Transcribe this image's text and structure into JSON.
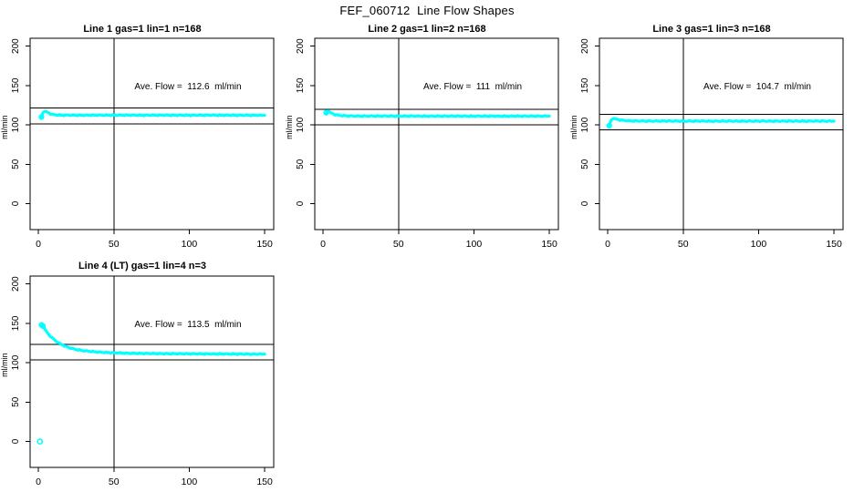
{
  "title": "FEF_060712  Line Flow Shapes",
  "colors": {
    "data": "#00FFFF",
    "axis": "#000000",
    "background": "#FFFFFF"
  },
  "axes": {
    "x_ticks": [
      0,
      50,
      100,
      150
    ],
    "y_ticks": [
      0,
      50,
      100,
      150,
      200
    ],
    "y_axis_label": "ml/min",
    "xlim": [
      0,
      150
    ],
    "ylim": [
      0,
      200
    ],
    "vline_x": 50
  },
  "chart_data": [
    {
      "type": "scatter",
      "title": "Line 1 gas=1 lin=1 n=168",
      "annotation": "Ave. Flow =  112.6  ml/min",
      "ave_flow": 112.6,
      "units": "ml/min",
      "n": 168,
      "hlines": [
        101,
        121.5
      ],
      "vline_x": 50,
      "points": [
        [
          2,
          110
        ],
        [
          3,
          115.5
        ],
        [
          4,
          117
        ],
        [
          5,
          117
        ],
        [
          6,
          116
        ],
        [
          7,
          115
        ],
        [
          8,
          114
        ],
        [
          10,
          113
        ],
        [
          12,
          112.6
        ],
        [
          15,
          112.3
        ],
        [
          20,
          112.4
        ],
        [
          30,
          112.2
        ],
        [
          40,
          112.4
        ],
        [
          50,
          112.3
        ],
        [
          60,
          112.4
        ],
        [
          70,
          112.2
        ],
        [
          80,
          112.4
        ],
        [
          90,
          112.3
        ],
        [
          100,
          112.2
        ],
        [
          110,
          112.4
        ],
        [
          120,
          112.3
        ],
        [
          130,
          112.2
        ],
        [
          140,
          112.3
        ],
        [
          150,
          112.1
        ]
      ],
      "start_circles": [
        [
          2,
          110
        ]
      ],
      "outliers": []
    },
    {
      "type": "scatter",
      "title": "Line 2 gas=1 lin=2 n=168",
      "annotation": "Ave. Flow =  111  ml/min",
      "ave_flow": 111,
      "units": "ml/min",
      "n": 168,
      "hlines": [
        100,
        119.5
      ],
      "vline_x": 50,
      "points": [
        [
          2,
          115
        ],
        [
          3,
          117.5
        ],
        [
          4,
          117
        ],
        [
          5,
          115.5
        ],
        [
          6,
          114.5
        ],
        [
          8,
          113
        ],
        [
          10,
          112.3
        ],
        [
          12,
          111.8
        ],
        [
          15,
          111.5
        ],
        [
          20,
          111.3
        ],
        [
          30,
          111.2
        ],
        [
          40,
          111.3
        ],
        [
          50,
          111.2
        ],
        [
          60,
          111.3
        ],
        [
          70,
          111.1
        ],
        [
          80,
          111.2
        ],
        [
          90,
          111.2
        ],
        [
          100,
          111.1
        ],
        [
          110,
          111.2
        ],
        [
          120,
          111.1
        ],
        [
          130,
          111.2
        ],
        [
          140,
          111.2
        ],
        [
          150,
          111.2
        ]
      ],
      "start_circles": [
        [
          2,
          115.5
        ]
      ],
      "outliers": []
    },
    {
      "type": "scatter",
      "title": "Line 3 gas=1 lin=3 n=168",
      "annotation": "Ave. Flow =  104.7  ml/min",
      "ave_flow": 104.7,
      "units": "ml/min",
      "n": 168,
      "hlines": [
        93.5,
        113.5
      ],
      "vline_x": 50,
      "points": [
        [
          1,
          99
        ],
        [
          2,
          105
        ],
        [
          3,
          107.5
        ],
        [
          4,
          108
        ],
        [
          5,
          107.8
        ],
        [
          6,
          107.2
        ],
        [
          8,
          106.3
        ],
        [
          10,
          105.8
        ],
        [
          12,
          105.4
        ],
        [
          15,
          105.1
        ],
        [
          20,
          104.9
        ],
        [
          30,
          104.8
        ],
        [
          40,
          104.9
        ],
        [
          50,
          104.8
        ],
        [
          60,
          104.8
        ],
        [
          70,
          104.7
        ],
        [
          80,
          104.8
        ],
        [
          90,
          104.7
        ],
        [
          100,
          104.8
        ],
        [
          110,
          104.7
        ],
        [
          120,
          104.8
        ],
        [
          130,
          104.7
        ],
        [
          140,
          104.8
        ],
        [
          150,
          104.7
        ]
      ],
      "start_circles": [
        [
          1,
          99
        ]
      ],
      "outliers": []
    },
    {
      "type": "scatter",
      "title": "Line 4 (LT) gas=1 lin=4 n=3",
      "annotation": "Ave. Flow =  113.5  ml/min",
      "ave_flow": 113.5,
      "units": "ml/min",
      "n": 3,
      "hlines": [
        103.5,
        123.5
      ],
      "vline_x": 50,
      "points": [
        [
          2,
          148
        ],
        [
          3,
          146.5
        ],
        [
          4,
          143.5
        ],
        [
          5,
          140.5
        ],
        [
          6,
          138
        ],
        [
          7,
          135.5
        ],
        [
          8,
          133.5
        ],
        [
          10,
          130
        ],
        [
          12,
          127
        ],
        [
          14,
          124.5
        ],
        [
          16,
          122.5
        ],
        [
          18,
          120.8
        ],
        [
          20,
          119.3
        ],
        [
          23,
          117.7
        ],
        [
          26,
          116.4
        ],
        [
          30,
          115.2
        ],
        [
          35,
          114.2
        ],
        [
          40,
          113.4
        ],
        [
          45,
          112.9
        ],
        [
          50,
          112.5
        ],
        [
          60,
          112
        ],
        [
          70,
          111.7
        ],
        [
          80,
          111.5
        ],
        [
          90,
          111.4
        ],
        [
          100,
          111.3
        ],
        [
          110,
          111.2
        ],
        [
          120,
          111.1
        ],
        [
          130,
          111
        ],
        [
          140,
          110.9
        ],
        [
          150,
          110.8
        ]
      ],
      "start_circles": [
        [
          2,
          148
        ],
        [
          3,
          146.5
        ]
      ],
      "outliers": [
        [
          1,
          0
        ]
      ]
    }
  ]
}
